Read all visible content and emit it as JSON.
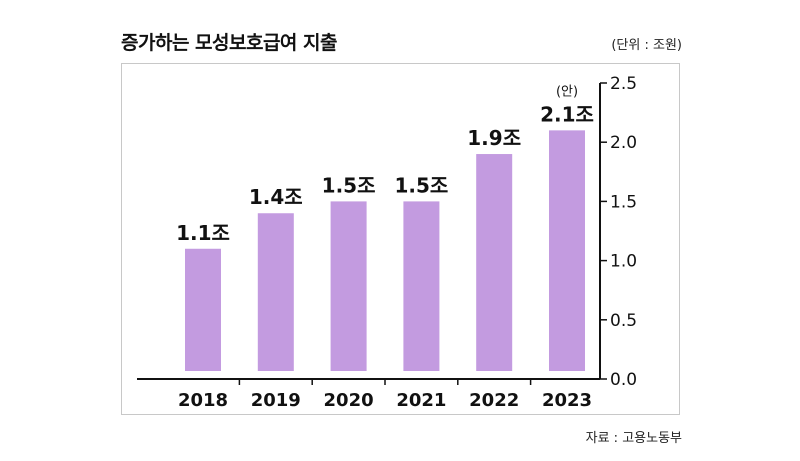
{
  "header": {
    "title": "증가하는 모성보호급여 지출",
    "unit": "(단위 : 조원)"
  },
  "footer": {
    "source": "자료 : 고용노동부"
  },
  "colors": {
    "bar": "#c39be0",
    "axis": "#111111",
    "border": "#c8c8c8"
  },
  "chart_data": {
    "type": "bar",
    "categories": [
      "2018",
      "2019",
      "2020",
      "2021",
      "2022",
      "2023"
    ],
    "values": [
      1.1,
      1.4,
      1.5,
      1.5,
      1.9,
      2.1
    ],
    "data_labels": [
      "1.1조",
      "1.4조",
      "1.5조",
      "1.5조",
      "1.9조",
      "2.1조"
    ],
    "annotations": [
      {
        "category": "2023",
        "text": "(안)"
      }
    ],
    "title": "증가하는 모성보호급여 지출",
    "xlabel": "",
    "ylabel": "",
    "ylim": [
      0,
      2.5
    ],
    "yticks": [
      "0.0",
      "0.5",
      "1.0",
      "1.5",
      "2.0",
      "2.5"
    ],
    "grid": false,
    "legend": "none"
  }
}
